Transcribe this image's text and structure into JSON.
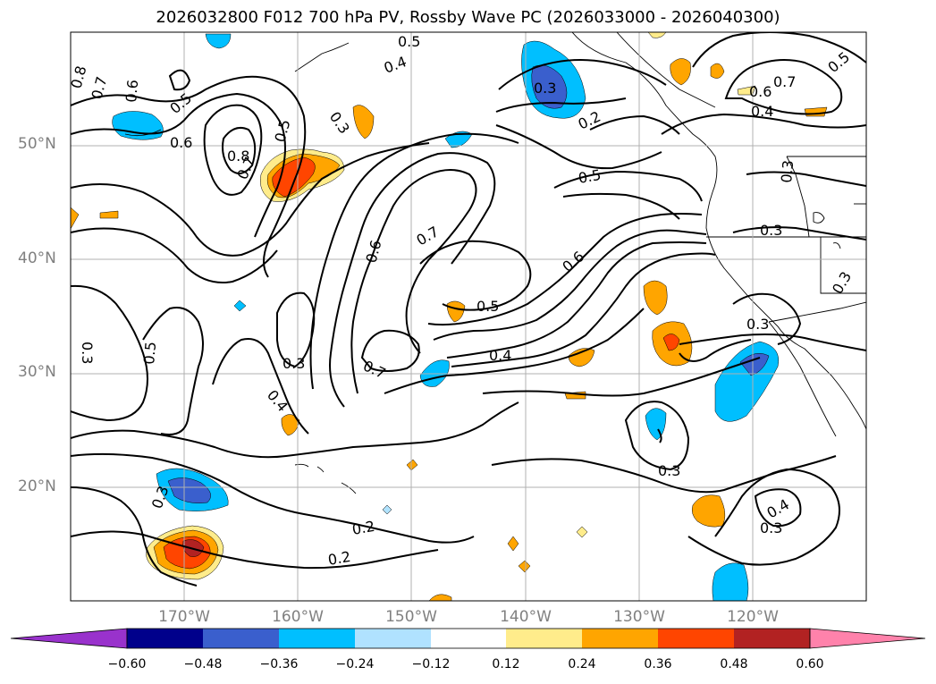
{
  "title": "2026032800 F012 700 hPa PV, Rossby Wave PC (2026033000 - 2026040300)",
  "lat_ticks": [
    "50°N",
    "40°N",
    "30°N",
    "20°N"
  ],
  "lon_ticks": [
    "170°W",
    "160°W",
    "150°W",
    "140°W",
    "130°W",
    "120°W"
  ],
  "colorbar": {
    "labels": [
      "−0.60",
      "−0.48",
      "−0.36",
      "−0.24",
      "−0.12",
      "0.12",
      "0.24",
      "0.36",
      "0.48",
      "0.60"
    ],
    "colors": [
      "#9932cc",
      "#00008b",
      "#3a5fcd",
      "#00bfff",
      "#b0e2ff",
      "#ffffff",
      "#ffec8b",
      "#ffa500",
      "#ff4500",
      "#b22222",
      "#ff82ab"
    ]
  },
  "contour_labels": [
    "0.5",
    "0.4",
    "0.8",
    "0.7",
    "0.6",
    "0.5",
    "0.3",
    "0.5",
    "0.6",
    "0.8",
    "0.7",
    "0.3",
    "0.2",
    "0.5",
    "0.6",
    "0.7",
    "0.4",
    "0.5",
    "0.3",
    "0.7",
    "0.6",
    "0.5",
    "0.6",
    "0.3",
    "0.3",
    "0.3",
    "0.3",
    "0.5",
    "0.4",
    "0.7",
    "0.3",
    "0.4",
    "0.3",
    "0.3",
    "0.4",
    "0.3",
    "0.2",
    "0.2"
  ]
}
